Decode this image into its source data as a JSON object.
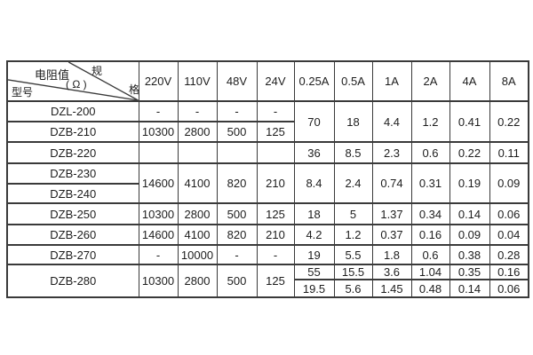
{
  "page": {
    "background": "#ffffff"
  },
  "colors": {
    "grid_line": "#3a3a3a",
    "text": "#1d1d1d"
  },
  "table": {
    "corner": {
      "spec_char_1": "规",
      "spec_char_2": "格",
      "resistance_label": "电阻值",
      "resistance_unit": "( Ω )",
      "model_label": "型号"
    },
    "column_headers": [
      "220V",
      "110V",
      "48V",
      "24V",
      "0.25A",
      "0.5A",
      "1A",
      "2A",
      "4A",
      "8A"
    ],
    "rows": [
      [
        {
          "t": "DZL-200"
        },
        {
          "t": "-"
        },
        {
          "t": "-"
        },
        {
          "t": "-"
        },
        {
          "t": "-"
        },
        {
          "t": "70",
          "rs": 2,
          "va": "bottom"
        },
        {
          "t": "18",
          "rs": 2,
          "va": "bottom"
        },
        {
          "t": "4.4",
          "rs": 2,
          "va": "bottom"
        },
        {
          "t": "1.2",
          "rs": 2,
          "va": "bottom"
        },
        {
          "t": "0.41",
          "rs": 2,
          "va": "bottom"
        },
        {
          "t": "0.22",
          "rs": 2,
          "va": "bottom"
        }
      ],
      [
        {
          "t": "DZB-210"
        },
        {
          "t": "10300"
        },
        {
          "t": "2800"
        },
        {
          "t": "500"
        },
        {
          "t": "125"
        }
      ],
      [
        {
          "t": "DZB-220"
        },
        {
          "t": ""
        },
        {
          "t": ""
        },
        {
          "t": ""
        },
        {
          "t": ""
        },
        {
          "t": "36"
        },
        {
          "t": "8.5"
        },
        {
          "t": "2.3"
        },
        {
          "t": "0.6"
        },
        {
          "t": "0.22"
        },
        {
          "t": "0.11"
        }
      ],
      [
        {
          "t": "DZB-230"
        },
        {
          "t": "14600",
          "rs": 2
        },
        {
          "t": "4100",
          "rs": 2
        },
        {
          "t": "820",
          "rs": 2
        },
        {
          "t": "210",
          "rs": 2
        },
        {
          "t": "8.4",
          "rs": 2
        },
        {
          "t": "2.4",
          "rs": 2
        },
        {
          "t": "0.74",
          "rs": 2
        },
        {
          "t": "0.31",
          "rs": 2
        },
        {
          "t": "0.19",
          "rs": 2
        },
        {
          "t": "0.09",
          "rs": 2
        }
      ],
      [
        {
          "t": "DZB-240"
        }
      ],
      [
        {
          "t": "DZB-250"
        },
        {
          "t": "10300"
        },
        {
          "t": "2800"
        },
        {
          "t": "500"
        },
        {
          "t": "125"
        },
        {
          "t": "18"
        },
        {
          "t": "5"
        },
        {
          "t": "1.37"
        },
        {
          "t": "0.34"
        },
        {
          "t": "0.14"
        },
        {
          "t": "0.06"
        }
      ],
      [
        {
          "t": "DZB-260"
        },
        {
          "t": "14600"
        },
        {
          "t": "4100"
        },
        {
          "t": "820"
        },
        {
          "t": "210"
        },
        {
          "t": "4.2"
        },
        {
          "t": "1.2"
        },
        {
          "t": "0.37"
        },
        {
          "t": "0.16"
        },
        {
          "t": "0.09"
        },
        {
          "t": "0.04"
        }
      ],
      [
        {
          "t": "DZB-270"
        },
        {
          "t": "-"
        },
        {
          "t": "10000"
        },
        {
          "t": "-"
        },
        {
          "t": "-"
        },
        {
          "t": "19"
        },
        {
          "t": "5.5"
        },
        {
          "t": "1.8"
        },
        {
          "t": "0.6"
        },
        {
          "t": "0.38"
        },
        {
          "t": "0.28"
        }
      ],
      [
        {
          "t": "DZB-280",
          "rs": 2,
          "va": "top"
        },
        {
          "t": "10300",
          "rs": 2,
          "va": "top"
        },
        {
          "t": "2800",
          "rs": 2,
          "va": "top"
        },
        {
          "t": "500",
          "rs": 2,
          "va": "top"
        },
        {
          "t": "125",
          "rs": 2,
          "va": "top"
        },
        {
          "t": "55"
        },
        {
          "t": "15.5"
        },
        {
          "t": "3.6"
        },
        {
          "t": "1.04"
        },
        {
          "t": "0.35"
        },
        {
          "t": "0.16"
        }
      ],
      [
        {
          "t": "19.5"
        },
        {
          "t": "5.6"
        },
        {
          "t": "1.45"
        },
        {
          "t": "0.48"
        },
        {
          "t": "0.14"
        },
        {
          "t": "0.06"
        }
      ]
    ]
  },
  "chart_data": {
    "type": "table",
    "title": "",
    "corner_labels": {
      "top_right": "规格",
      "middle": "电阻值(Ω)",
      "bottom_left": "型号"
    },
    "columns": [
      "220V",
      "110V",
      "48V",
      "24V",
      "0.25A",
      "0.5A",
      "1A",
      "2A",
      "4A",
      "8A"
    ],
    "rows": [
      {
        "model": "DZL-200",
        "values": [
          "-",
          "-",
          "-",
          "-",
          "",
          "",
          "",
          "",
          "",
          ""
        ]
      },
      {
        "model": "DZB-210",
        "values": [
          "10300",
          "2800",
          "500",
          "125",
          "70",
          "18",
          "4.4",
          "1.2",
          "0.41",
          "0.22"
        ]
      },
      {
        "model": "DZB-220",
        "values": [
          "",
          "",
          "",
          "",
          "36",
          "8.5",
          "2.3",
          "0.6",
          "0.22",
          "0.11"
        ]
      },
      {
        "model": "DZB-230",
        "values": [
          "14600",
          "4100",
          "820",
          "210",
          "8.4",
          "2.4",
          "0.74",
          "0.31",
          "0.19",
          "0.09"
        ]
      },
      {
        "model": "DZB-240",
        "values": [
          "14600",
          "4100",
          "820",
          "210",
          "8.4",
          "2.4",
          "0.74",
          "0.31",
          "0.19",
          "0.09"
        ]
      },
      {
        "model": "DZB-250",
        "values": [
          "10300",
          "2800",
          "500",
          "125",
          "18",
          "5",
          "1.37",
          "0.34",
          "0.14",
          "0.06"
        ]
      },
      {
        "model": "DZB-260",
        "values": [
          "14600",
          "4100",
          "820",
          "210",
          "4.2",
          "1.2",
          "0.37",
          "0.16",
          "0.09",
          "0.04"
        ]
      },
      {
        "model": "DZB-270",
        "values": [
          "-",
          "10000",
          "-",
          "-",
          "19",
          "5.5",
          "1.8",
          "0.6",
          "0.38",
          "0.28"
        ]
      },
      {
        "model": "DZB-280",
        "values": [
          "10300",
          "2800",
          "500",
          "125",
          "55",
          "15.5",
          "3.6",
          "1.04",
          "0.35",
          "0.16"
        ]
      },
      {
        "model": "DZB-280",
        "values": [
          "10300",
          "2800",
          "500",
          "125",
          "19.5",
          "5.6",
          "1.45",
          "0.48",
          "0.14",
          "0.06"
        ]
      }
    ],
    "merges": [
      "DZL-200 and DZB-210 share one merged cell per current column (0.25A-8A)",
      "DZB-230 and DZB-240 share merged cells in all voltage and current columns",
      "DZB-280 spans two current-value sub-rows in model and voltage columns"
    ],
    "layout_hints": {
      "grid": "on",
      "header_diagonal_split": true
    }
  }
}
